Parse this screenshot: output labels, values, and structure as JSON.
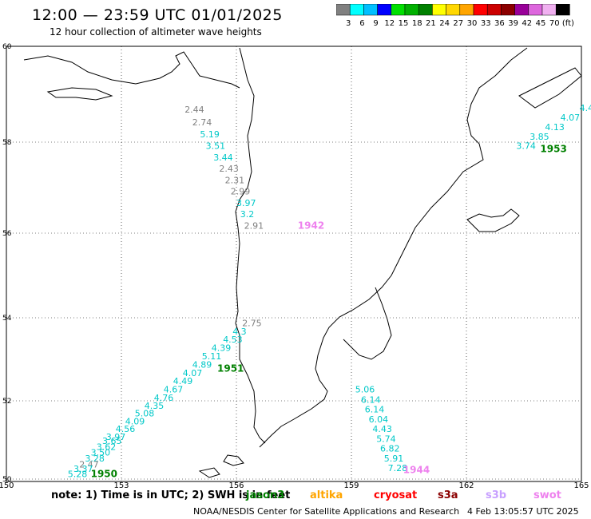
{
  "header": {
    "title": "12:00 — 23:59 UTC 01/01/2025",
    "subtitle": "12 hour collection of altimeter wave heights"
  },
  "colorbar": {
    "labels": [
      "3",
      "6",
      "9",
      "12",
      "15",
      "18",
      "21",
      "24",
      "27",
      "30",
      "33",
      "36",
      "39",
      "42",
      "45",
      "70",
      "(ft)"
    ],
    "colors": [
      "#808080",
      "#00ffff",
      "#00bfff",
      "#0000ff",
      "#00e000",
      "#00b000",
      "#008000",
      "#ffff00",
      "#ffd700",
      "#ffa500",
      "#ff0000",
      "#cc0000",
      "#8b0000",
      "#990099",
      "#dd66dd",
      "#f0b0f0",
      "#000000"
    ]
  },
  "axes": {
    "lon_ticks": [
      "150",
      "153",
      "156",
      "159",
      "162",
      "165"
    ],
    "lat_ticks": [
      "60",
      "58",
      "56",
      "54",
      "52",
      "50"
    ]
  },
  "passes": [
    {
      "id": "1942",
      "color": "#ee82ee",
      "label_color": "#ee82ee",
      "points": [
        {
          "lat": 58.62,
          "lon": 154.65,
          "h": "2.44",
          "c": "#808080"
        },
        {
          "lat": 58.35,
          "lon": 154.85,
          "h": "2.74",
          "c": "#808080"
        },
        {
          "lat": 58.1,
          "lon": 155.05,
          "h": "5.19",
          "c": "#00c8c8"
        },
        {
          "lat": 57.85,
          "lon": 155.2,
          "h": "3.51",
          "c": "#00c8c8"
        },
        {
          "lat": 57.6,
          "lon": 155.4,
          "h": "3.44",
          "c": "#00c8c8"
        },
        {
          "lat": 57.35,
          "lon": 155.55,
          "h": "2.43",
          "c": "#808080"
        },
        {
          "lat": 57.1,
          "lon": 155.7,
          "h": "2.31",
          "c": "#808080"
        },
        {
          "lat": 56.85,
          "lon": 155.85,
          "h": "2.99",
          "c": "#808080"
        },
        {
          "lat": 56.6,
          "lon": 156.0,
          "h": "3.97",
          "c": "#00c8c8"
        },
        {
          "lat": 56.35,
          "lon": 156.1,
          "h": "3.2",
          "c": "#00c8c8"
        },
        {
          "lat": 56.1,
          "lon": 156.2,
          "h": "2.91",
          "c": "#808080"
        }
      ]
    },
    {
      "id": "1953",
      "color": "#008000",
      "label_color": "#008000",
      "points": [
        {
          "lat": 58.65,
          "lon": 164.95,
          "h": "4.4",
          "c": "#00c8c8"
        },
        {
          "lat": 58.45,
          "lon": 164.45,
          "h": "4.07",
          "c": "#00c8c8"
        },
        {
          "lat": 58.25,
          "lon": 164.05,
          "h": "4.13",
          "c": "#00c8c8"
        },
        {
          "lat": 58.05,
          "lon": 163.65,
          "h": "3.85",
          "c": "#00c8c8"
        },
        {
          "lat": 57.85,
          "lon": 163.3,
          "h": "3.74",
          "c": "#00c8c8"
        }
      ]
    },
    {
      "id": "1951",
      "color": "#008000",
      "label_color": "#008000",
      "points": [
        {
          "lat": 53.8,
          "lon": 156.15,
          "h": "2.75",
          "c": "#808080"
        },
        {
          "lat": 53.6,
          "lon": 155.9,
          "h": "4.3",
          "c": "#00c8c8"
        },
        {
          "lat": 53.4,
          "lon": 155.65,
          "h": "4.53",
          "c": "#00c8c8"
        },
        {
          "lat": 53.2,
          "lon": 155.35,
          "h": "4.39",
          "c": "#00c8c8"
        },
        {
          "lat": 53.0,
          "lon": 155.1,
          "h": "5.11",
          "c": "#00c8c8"
        },
        {
          "lat": 52.8,
          "lon": 154.85,
          "h": "4.89",
          "c": "#00c8c8"
        },
        {
          "lat": 52.6,
          "lon": 154.6,
          "h": "4.07",
          "c": "#00c8c8"
        },
        {
          "lat": 52.4,
          "lon": 154.35,
          "h": "4.49",
          "c": "#00c8c8"
        },
        {
          "lat": 52.2,
          "lon": 154.1,
          "h": "4.67",
          "c": "#00c8c8"
        },
        {
          "lat": 52.0,
          "lon": 153.85,
          "h": "4.76",
          "c": "#00c8c8"
        },
        {
          "lat": 51.8,
          "lon": 153.6,
          "h": "4.35",
          "c": "#00c8c8"
        },
        {
          "lat": 51.6,
          "lon": 153.35,
          "h": "5.08",
          "c": "#00c8c8"
        },
        {
          "lat": 51.4,
          "lon": 153.1,
          "h": "4.09",
          "c": "#00c8c8"
        },
        {
          "lat": 51.2,
          "lon": 152.85,
          "h": "4.56",
          "c": "#00c8c8"
        },
        {
          "lat": 51.0,
          "lon": 152.6,
          "h": "3.97",
          "c": "#00c8c8"
        }
      ]
    },
    {
      "id": "1950",
      "color": "#008000",
      "label_color": "#008000",
      "points": [
        {
          "lat": 50.9,
          "lon": 152.5,
          "h": "3.65",
          "c": "#00c8c8"
        },
        {
          "lat": 50.75,
          "lon": 152.35,
          "h": "3.62",
          "c": "#00c8c8"
        },
        {
          "lat": 50.6,
          "lon": 152.2,
          "h": "3.50",
          "c": "#00c8c8"
        },
        {
          "lat": 50.45,
          "lon": 152.05,
          "h": "3.28",
          "c": "#00c8c8"
        },
        {
          "lat": 50.3,
          "lon": 151.9,
          "h": "2.47",
          "c": "#808080"
        },
        {
          "lat": 50.18,
          "lon": 151.75,
          "h": "3.37",
          "c": "#00c8c8"
        },
        {
          "lat": 50.05,
          "lon": 151.6,
          "h": "5.28",
          "c": "#00c8c8"
        }
      ]
    },
    {
      "id": "1944",
      "color": "#ee82ee",
      "label_color": "#ee82ee",
      "points": [
        {
          "lat": 52.2,
          "lon": 159.1,
          "h": "5.06",
          "c": "#00c8c8"
        },
        {
          "lat": 51.95,
          "lon": 159.25,
          "h": "6.14",
          "c": "#00c8c8"
        },
        {
          "lat": 51.7,
          "lon": 159.35,
          "h": "6.14",
          "c": "#00c8c8"
        },
        {
          "lat": 51.45,
          "lon": 159.45,
          "h": "6.04",
          "c": "#00c8c8"
        },
        {
          "lat": 51.2,
          "lon": 159.55,
          "h": "4.43",
          "c": "#00c8c8"
        },
        {
          "lat": 50.95,
          "lon": 159.65,
          "h": "5.74",
          "c": "#00c8c8"
        },
        {
          "lat": 50.7,
          "lon": 159.75,
          "h": "6.82",
          "c": "#00c8c8"
        },
        {
          "lat": 50.45,
          "lon": 159.85,
          "h": "5.91",
          "c": "#00c8c8"
        },
        {
          "lat": 50.2,
          "lon": 159.95,
          "h": "7.28",
          "c": "#00c8c8"
        }
      ]
    }
  ],
  "footer": {
    "note": "note: 1) Time is in UTC; 2) SWH is in feet",
    "credit": "NOAA/NESDIS Center for Satellite Applications and Research",
    "timestamp": "4 Feb 13:05:57 UTC 2025",
    "legend": [
      {
        "name": "jason3",
        "color": "#008000"
      },
      {
        "name": "altika",
        "color": "#ffa500"
      },
      {
        "name": "cryosat",
        "color": "#ff0000"
      },
      {
        "name": "s3a",
        "color": "#8b0000"
      },
      {
        "name": "s3b",
        "color": "#c8a0ff"
      },
      {
        "name": "swot",
        "color": "#ee82ee"
      }
    ]
  }
}
